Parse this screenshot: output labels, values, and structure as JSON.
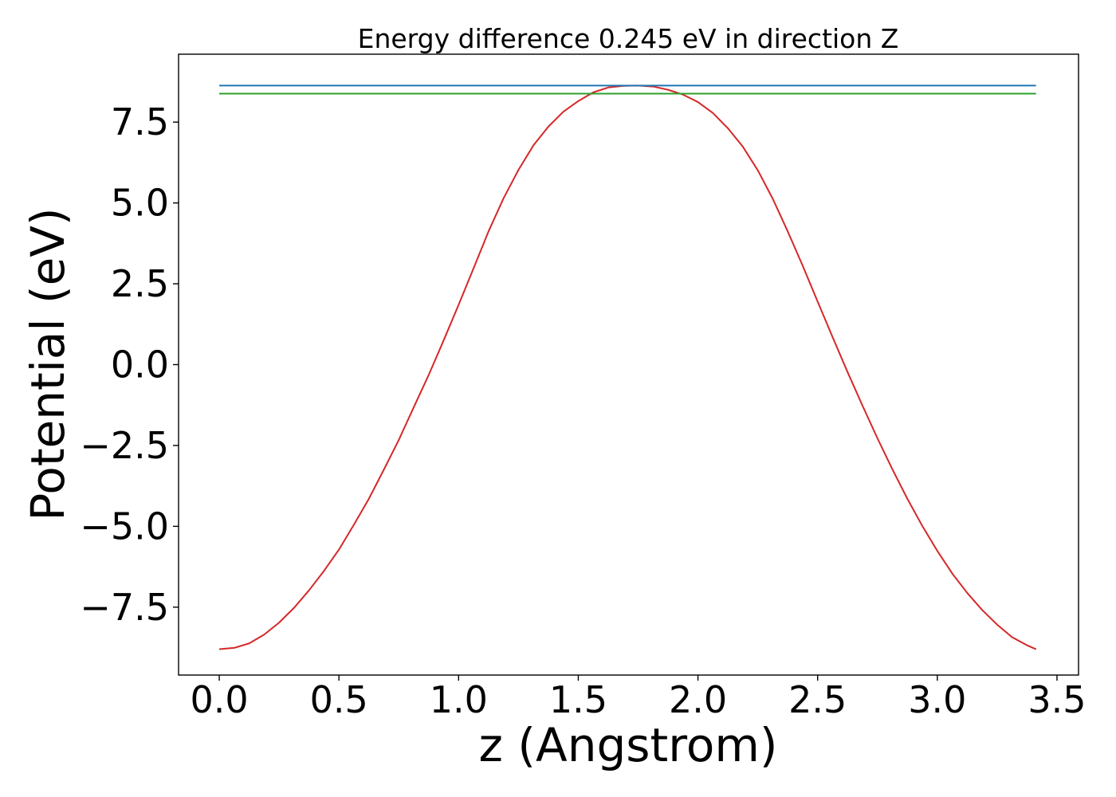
{
  "chart_data": {
    "type": "line",
    "title": "Energy difference 0.245 eV in direction Z",
    "xlabel": "z (Angstrom)",
    "ylabel": "Potential (eV)",
    "xlim": [
      -0.17,
      3.59
    ],
    "ylim": [
      -9.6,
      9.6
    ],
    "x_ticks": [
      0.0,
      0.5,
      1.0,
      1.5,
      2.0,
      2.5,
      3.0,
      3.5
    ],
    "x_tick_labels": [
      "0.0",
      "0.5",
      "1.0",
      "1.5",
      "2.0",
      "2.5",
      "3.0",
      "3.5"
    ],
    "y_ticks": [
      -7.5,
      -5.0,
      -2.5,
      0.0,
      2.5,
      5.0,
      7.5
    ],
    "y_tick_labels": [
      "−7.5",
      "−5.0",
      "−2.5",
      "0.0",
      "2.5",
      "5.0",
      "7.5"
    ],
    "grid": false,
    "series": [
      {
        "color": "#d62728",
        "x": [
          0.0,
          0.0625,
          0.125,
          0.1875,
          0.25,
          0.3125,
          0.375,
          0.4375,
          0.5,
          0.5625,
          0.625,
          0.6875,
          0.75,
          0.8125,
          0.875,
          0.9375,
          1.0,
          1.0625,
          1.125,
          1.1875,
          1.25,
          1.3125,
          1.375,
          1.4375,
          1.5,
          1.5625,
          1.625,
          1.6875,
          1.75,
          1.8125,
          1.875,
          1.9375,
          2.0,
          2.0625,
          2.125,
          2.1875,
          2.25,
          2.3125,
          2.375,
          2.4375,
          2.5,
          2.5625,
          2.625,
          2.6875,
          2.75,
          2.8125,
          2.875,
          2.9375,
          3.0,
          3.0625,
          3.125,
          3.1875,
          3.25,
          3.3125,
          3.375,
          3.4125
        ],
        "y": [
          -8.8,
          -8.76,
          -8.62,
          -8.35,
          -7.98,
          -7.52,
          -6.98,
          -6.38,
          -5.72,
          -4.95,
          -4.15,
          -3.25,
          -2.33,
          -1.32,
          -0.32,
          0.75,
          1.85,
          2.98,
          4.12,
          5.14,
          6.02,
          6.78,
          7.36,
          7.82,
          8.15,
          8.42,
          8.57,
          8.62,
          8.63,
          8.6,
          8.5,
          8.35,
          8.12,
          7.78,
          7.31,
          6.74,
          6.01,
          5.13,
          4.12,
          3.06,
          1.95,
          0.85,
          -0.23,
          -1.27,
          -2.28,
          -3.24,
          -4.15,
          -4.99,
          -5.76,
          -6.46,
          -7.06,
          -7.59,
          -8.04,
          -8.43,
          -8.68,
          -8.8
        ]
      },
      {
        "color": "#1f77b4",
        "x": [
          0.0,
          3.4125
        ],
        "y": [
          8.63,
          8.63
        ]
      },
      {
        "color": "#2ca02c",
        "x": [
          0.0,
          3.4125
        ],
        "y": [
          8.38,
          8.38
        ]
      }
    ]
  }
}
